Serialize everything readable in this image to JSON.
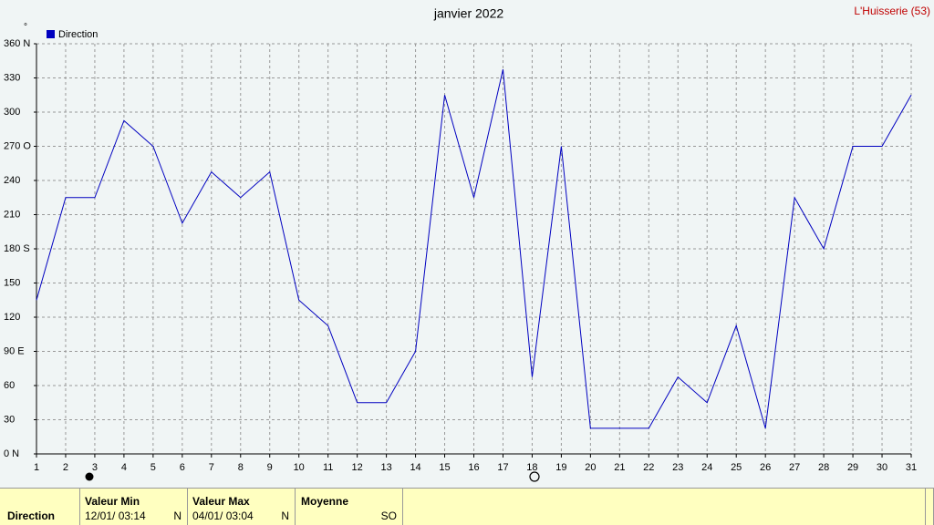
{
  "chart_data": {
    "type": "line",
    "title": "janvier 2022",
    "station": "L'Huisserie (53)",
    "unit": "°",
    "categories": [
      1,
      2,
      3,
      4,
      5,
      6,
      7,
      8,
      9,
      10,
      11,
      12,
      13,
      14,
      15,
      16,
      17,
      18,
      19,
      20,
      21,
      22,
      23,
      24,
      25,
      26,
      27,
      28,
      29,
      30,
      31
    ],
    "series": [
      {
        "name": "Direction",
        "color": "#0000c0",
        "values": [
          135,
          225,
          225,
          292.5,
          270,
          202.5,
          247.5,
          225,
          247.5,
          135,
          112.5,
          45,
          45,
          90,
          315,
          225,
          337.5,
          67.5,
          270,
          22.5,
          22.5,
          22.5,
          67.5,
          45,
          112.5,
          22.5,
          225,
          180,
          270,
          270,
          315
        ]
      }
    ],
    "ylim": [
      0,
      360
    ],
    "yticks": [
      {
        "value": 0,
        "label": "0  N"
      },
      30,
      60,
      {
        "value": 90,
        "label": "90  E"
      },
      120,
      150,
      {
        "value": 180,
        "label": "180 S"
      },
      210,
      240,
      {
        "value": 270,
        "label": "270 O"
      },
      300,
      330,
      {
        "value": 360,
        "label": "360 N"
      }
    ],
    "grid": true
  },
  "summary": {
    "row_label": "Direction",
    "min": {
      "label": "Valeur Min",
      "date": "12/01/  03:14",
      "dir": "N"
    },
    "max": {
      "label": "Valeur Max",
      "date": "04/01/  03:04",
      "dir": "N"
    },
    "mean": {
      "label": "Moyenne",
      "dir": "SO"
    }
  }
}
